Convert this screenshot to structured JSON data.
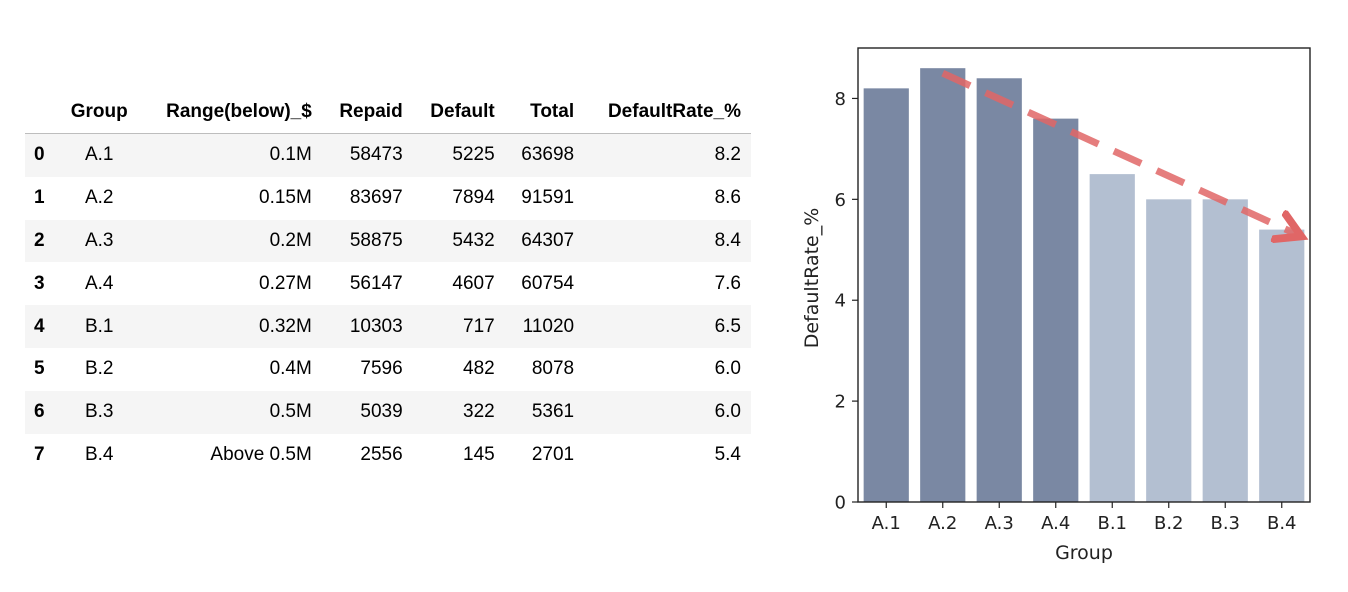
{
  "table": {
    "columns": [
      "",
      "Group",
      "Range(below)_$",
      "Repaid",
      "Default",
      "Total",
      "DefaultRate_%"
    ],
    "rows": [
      {
        "index": "0",
        "group": "A.1",
        "range": "0.1M",
        "repaid": "58473",
        "default": "5225",
        "total": "63698",
        "rate": "8.2"
      },
      {
        "index": "1",
        "group": "A.2",
        "range": "0.15M",
        "repaid": "83697",
        "default": "7894",
        "total": "91591",
        "rate": "8.6"
      },
      {
        "index": "2",
        "group": "A.3",
        "range": "0.2M",
        "repaid": "58875",
        "default": "5432",
        "total": "64307",
        "rate": "8.4"
      },
      {
        "index": "3",
        "group": "A.4",
        "range": "0.27M",
        "repaid": "56147",
        "default": "4607",
        "total": "60754",
        "rate": "7.6"
      },
      {
        "index": "4",
        "group": "B.1",
        "range": "0.32M",
        "repaid": "10303",
        "default": "717",
        "total": "11020",
        "rate": "6.5"
      },
      {
        "index": "5",
        "group": "B.2",
        "range": "0.4M",
        "repaid": "7596",
        "default": "482",
        "total": "8078",
        "rate": "6.0"
      },
      {
        "index": "6",
        "group": "B.3",
        "range": "0.5M",
        "repaid": "5039",
        "default": "322",
        "total": "5361",
        "rate": "6.0"
      },
      {
        "index": "7",
        "group": "B.4",
        "range": "Above 0.5M",
        "repaid": "2556",
        "default": "145",
        "total": "2701",
        "rate": "5.4"
      }
    ]
  },
  "chart_data": {
    "type": "bar",
    "categories": [
      "A.1",
      "A.2",
      "A.3",
      "A.4",
      "B.1",
      "B.2",
      "B.3",
      "B.4"
    ],
    "values": [
      8.2,
      8.6,
      8.4,
      7.6,
      6.5,
      6.0,
      6.0,
      5.4
    ],
    "bar_colors": [
      "#7a88a3",
      "#7a88a3",
      "#7a88a3",
      "#7a88a3",
      "#b3bfd1",
      "#b3bfd1",
      "#b3bfd1",
      "#b3bfd1"
    ],
    "xlabel": "Group",
    "ylabel": "DefaultRate_%",
    "ylim": [
      0,
      9.0
    ],
    "yticks": [
      0,
      2,
      4,
      6,
      8
    ],
    "grid": false,
    "annotations": [
      {
        "type": "trend-arrow",
        "from": {
          "category": "A.2",
          "value": 8.5
        },
        "to": {
          "category": "B.4",
          "value": 5.3
        },
        "style": "dashed",
        "color": "#e06666"
      }
    ]
  }
}
